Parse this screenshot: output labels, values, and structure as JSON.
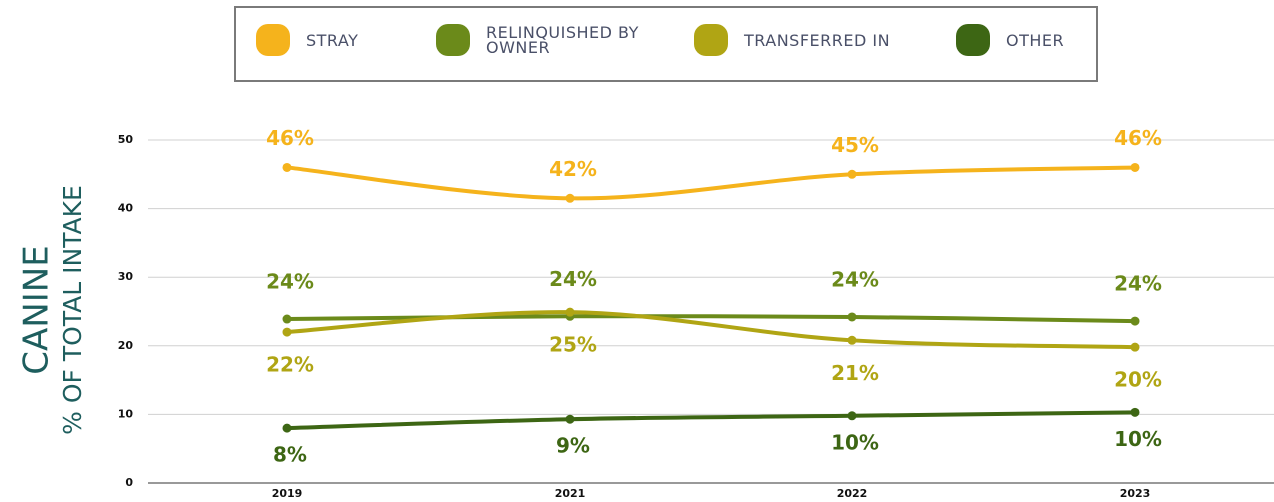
{
  "chart_data": {
    "type": "line",
    "ylabel": "% OF TOTAL INTAKE",
    "title": "CANINE",
    "categories": [
      "2019",
      "2021",
      "2022",
      "2023"
    ],
    "series": [
      {
        "name": "STRAY",
        "color": "#f5b31c",
        "values": [
          46,
          41.5,
          45,
          46
        ],
        "value_labels": [
          "46%",
          "42%",
          "45%",
          "46%"
        ]
      },
      {
        "name": "RELINQUISHED BY OWNER",
        "color": "#6b8a1a",
        "values": [
          23.9,
          24.3,
          24.2,
          23.6
        ],
        "value_labels": [
          "24%",
          "24%",
          "24%",
          "24%"
        ]
      },
      {
        "name": "TRANSFERRED IN",
        "color": "#b0a514",
        "values": [
          22,
          24.9,
          20.8,
          19.8
        ],
        "value_labels": [
          "22%",
          "25%",
          "21%",
          "20%"
        ]
      },
      {
        "name": "OTHER",
        "color": "#3d6614",
        "values": [
          8,
          9.3,
          9.8,
          10.3
        ],
        "value_labels": [
          "8%",
          "9%",
          "10%",
          "10%"
        ]
      }
    ],
    "ylim": [
      0,
      50
    ],
    "yticks": [
      0,
      10,
      20,
      30,
      40,
      50
    ],
    "grid": true
  }
}
